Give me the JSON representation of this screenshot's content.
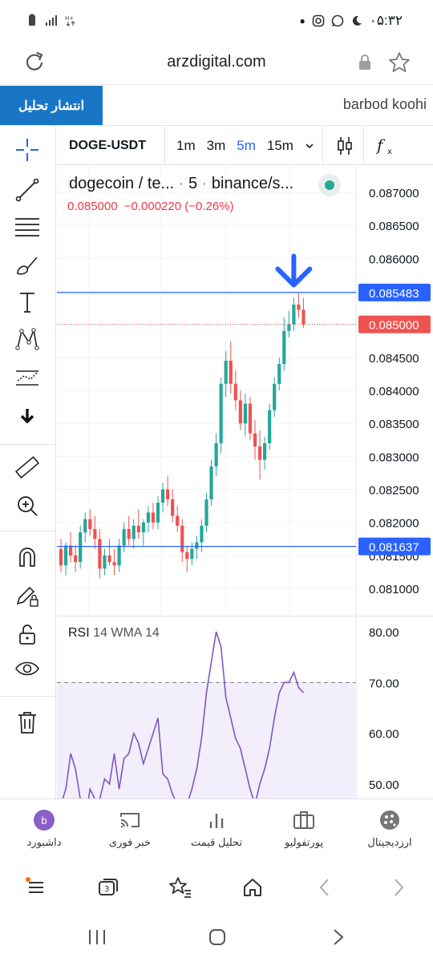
{
  "status_bar": {
    "time": "۰۵:۳۲"
  },
  "browser": {
    "url": "arzdigital.com"
  },
  "publish": {
    "button_label": "انتشار تحلیل",
    "username": "barbod koohi"
  },
  "chart_toolbar": {
    "symbol": "DOGE-USDT",
    "timeframes": [
      "1m",
      "3m",
      "5m",
      "15m"
    ],
    "active_timeframe": "5m"
  },
  "legend": {
    "title": "dogecoin / te...",
    "interval": "5",
    "exchange": "binance/s...",
    "price": "0.085000",
    "change": "−0.000220 (−0.26%)"
  },
  "price_axis": {
    "ticks": [
      "0.087000",
      "0.086500",
      "0.086000",
      "0.085500",
      "0.085000",
      "0.084500",
      "0.084000",
      "0.083500",
      "0.083000",
      "0.082500",
      "0.082000",
      "0.081500",
      "0.081000"
    ],
    "label_hline_top": "0.085483",
    "label_last": "0.085000",
    "label_hline_bottom": "0.081637"
  },
  "rsi": {
    "label": "RSI",
    "params": "14 WMA 14",
    "ticks": [
      "80.00",
      "70.00",
      "60.00",
      "50.00"
    ]
  },
  "chart_data": {
    "type": "candlestick",
    "symbol": "DOGE-USDT",
    "interval": "5",
    "ylim": [
      0.0806,
      0.0874
    ],
    "horizontal_lines": [
      0.085483,
      0.081637
    ],
    "last_price": 0.085,
    "candles": [
      [
        0.0816,
        0.08175,
        0.08125,
        0.08135
      ],
      [
        0.08135,
        0.0817,
        0.0812,
        0.08165
      ],
      [
        0.08165,
        0.08185,
        0.0814,
        0.0815
      ],
      [
        0.0815,
        0.08165,
        0.08125,
        0.0814
      ],
      [
        0.0814,
        0.08195,
        0.0813,
        0.08185
      ],
      [
        0.08185,
        0.08215,
        0.0817,
        0.08205
      ],
      [
        0.08205,
        0.0822,
        0.0818,
        0.0819
      ],
      [
        0.0819,
        0.0821,
        0.0816,
        0.08175
      ],
      [
        0.08175,
        0.0819,
        0.08115,
        0.0813
      ],
      [
        0.0813,
        0.0816,
        0.0812,
        0.0815
      ],
      [
        0.0815,
        0.08175,
        0.08135,
        0.0814
      ],
      [
        0.0814,
        0.0816,
        0.0812,
        0.08135
      ],
      [
        0.08135,
        0.08175,
        0.08125,
        0.08165
      ],
      [
        0.08165,
        0.082,
        0.08155,
        0.0819
      ],
      [
        0.0819,
        0.0821,
        0.08165,
        0.08175
      ],
      [
        0.08175,
        0.08205,
        0.0816,
        0.08195
      ],
      [
        0.08195,
        0.0822,
        0.08175,
        0.08185
      ],
      [
        0.08185,
        0.08205,
        0.08165,
        0.082
      ],
      [
        0.082,
        0.08225,
        0.08185,
        0.08215
      ],
      [
        0.08215,
        0.0823,
        0.0819,
        0.082
      ],
      [
        0.082,
        0.0824,
        0.0819,
        0.0823
      ],
      [
        0.0823,
        0.0826,
        0.08215,
        0.0825
      ],
      [
        0.0825,
        0.0827,
        0.08225,
        0.08235
      ],
      [
        0.08235,
        0.0825,
        0.082,
        0.0821
      ],
      [
        0.0821,
        0.08225,
        0.08185,
        0.08195
      ],
      [
        0.08195,
        0.08205,
        0.0814,
        0.08155
      ],
      [
        0.08155,
        0.08165,
        0.08125,
        0.08145
      ],
      [
        0.08145,
        0.0817,
        0.08135,
        0.0816
      ],
      [
        0.0816,
        0.0818,
        0.08145,
        0.0817
      ],
      [
        0.0817,
        0.08205,
        0.08155,
        0.08195
      ],
      [
        0.08195,
        0.08245,
        0.08185,
        0.08235
      ],
      [
        0.08235,
        0.08295,
        0.08225,
        0.08285
      ],
      [
        0.08285,
        0.08335,
        0.0827,
        0.0832
      ],
      [
        0.0832,
        0.0842,
        0.08305,
        0.0841
      ],
      [
        0.0841,
        0.0846,
        0.0839,
        0.08445
      ],
      [
        0.08445,
        0.08475,
        0.08395,
        0.0841
      ],
      [
        0.0841,
        0.0843,
        0.0837,
        0.08385
      ],
      [
        0.08385,
        0.084,
        0.0834,
        0.0835
      ],
      [
        0.0835,
        0.08395,
        0.0833,
        0.0838
      ],
      [
        0.0838,
        0.0839,
        0.08325,
        0.08335
      ],
      [
        0.08335,
        0.08355,
        0.08295,
        0.08315
      ],
      [
        0.08315,
        0.0834,
        0.08265,
        0.08295
      ],
      [
        0.08295,
        0.0833,
        0.0828,
        0.0832
      ],
      [
        0.0832,
        0.0838,
        0.0831,
        0.0837
      ],
      [
        0.0837,
        0.0842,
        0.0836,
        0.0841
      ],
      [
        0.0841,
        0.0845,
        0.084,
        0.0844
      ],
      [
        0.0844,
        0.0851,
        0.0843,
        0.0849
      ],
      [
        0.0849,
        0.0852,
        0.0848,
        0.085
      ],
      [
        0.085,
        0.0854,
        0.0849,
        0.0853
      ],
      [
        0.0853,
        0.08548,
        0.0851,
        0.08522
      ],
      [
        0.08522,
        0.0854,
        0.08495,
        0.085
      ]
    ],
    "rsi_values": [
      46,
      49,
      56,
      53,
      47,
      43,
      49,
      47,
      47,
      51,
      50,
      56,
      49,
      55,
      56,
      60,
      58,
      54,
      57,
      60,
      63,
      52,
      51,
      48,
      46,
      41,
      46,
      49,
      53,
      59,
      68,
      74,
      80,
      77,
      67,
      63,
      59,
      57,
      53,
      49,
      46,
      50,
      53,
      57,
      63,
      68,
      70,
      70,
      72,
      69,
      68
    ],
    "rsi_ylim": [
      47,
      83
    ],
    "rsi_overbought": 70
  },
  "bottom_nav": {
    "items": [
      {
        "label": "ارزدیجیتال",
        "icon": "arzdigital-logo-icon"
      },
      {
        "label": "پورتفولیو",
        "icon": "briefcase-icon"
      },
      {
        "label": "تحلیل قیمت",
        "icon": "bar-chart-icon"
      },
      {
        "label": "خبر فوری",
        "icon": "cast-icon"
      },
      {
        "label": "داشبورد",
        "icon": "avatar-icon"
      }
    ],
    "avatar_letter": "b"
  },
  "colors": {
    "accent": "#1976c6",
    "up": "#26a69a",
    "down": "#ef5350",
    "line": "#2962ff",
    "rsi": "#7e57c2"
  }
}
